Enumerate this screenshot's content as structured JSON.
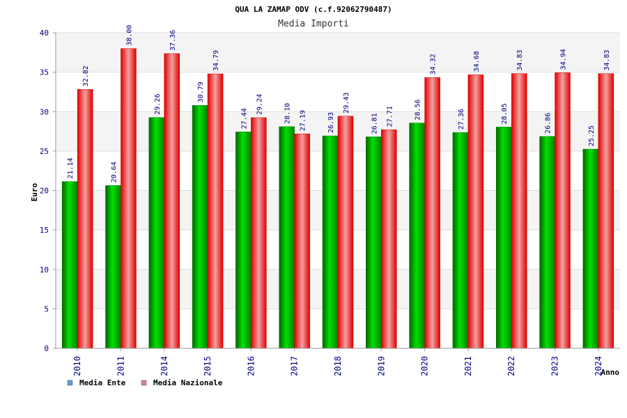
{
  "chart_data": {
    "type": "bar",
    "title": "QUA LA ZAMAP ODV (c.f.92062790487)",
    "subtitle": "Media Importi",
    "xlabel": "Anno",
    "ylabel": "Euro",
    "ylim": [
      0,
      40
    ],
    "yticks": [
      0,
      5,
      10,
      15,
      20,
      25,
      30,
      35,
      40
    ],
    "categories": [
      "2010",
      "2011",
      "2014",
      "2015",
      "2016",
      "2017",
      "2018",
      "2019",
      "2020",
      "2021",
      "2022",
      "2023",
      "2024"
    ],
    "series": [
      {
        "name": "Media Ente",
        "values": [
          21.14,
          20.64,
          29.26,
          30.79,
          27.44,
          28.1,
          26.93,
          26.81,
          28.56,
          27.36,
          28.05,
          26.86,
          25.25
        ],
        "labels": [
          "21.14",
          "20.64",
          "29.26",
          "30.79",
          "27.44",
          "28.10",
          "26.93",
          "26.81",
          "28.56",
          "27.36",
          "28.05",
          "26.86",
          "25.25"
        ],
        "color": "#00b400",
        "legend_color": "#5b9bd5"
      },
      {
        "name": "Media Nazionale",
        "values": [
          32.82,
          38.0,
          37.36,
          34.79,
          29.24,
          27.19,
          29.43,
          27.71,
          34.32,
          34.68,
          34.83,
          34.94,
          34.83
        ],
        "labels": [
          "32.82",
          "38.00",
          "37.36",
          "34.79",
          "29.24",
          "27.19",
          "29.43",
          "27.71",
          "34.32",
          "34.68",
          "34.83",
          "34.94",
          "34.83"
        ],
        "color": "#ff0000",
        "legend_color": "#e07ab0"
      }
    ],
    "grid": true,
    "legend_position": "bottom-left"
  }
}
